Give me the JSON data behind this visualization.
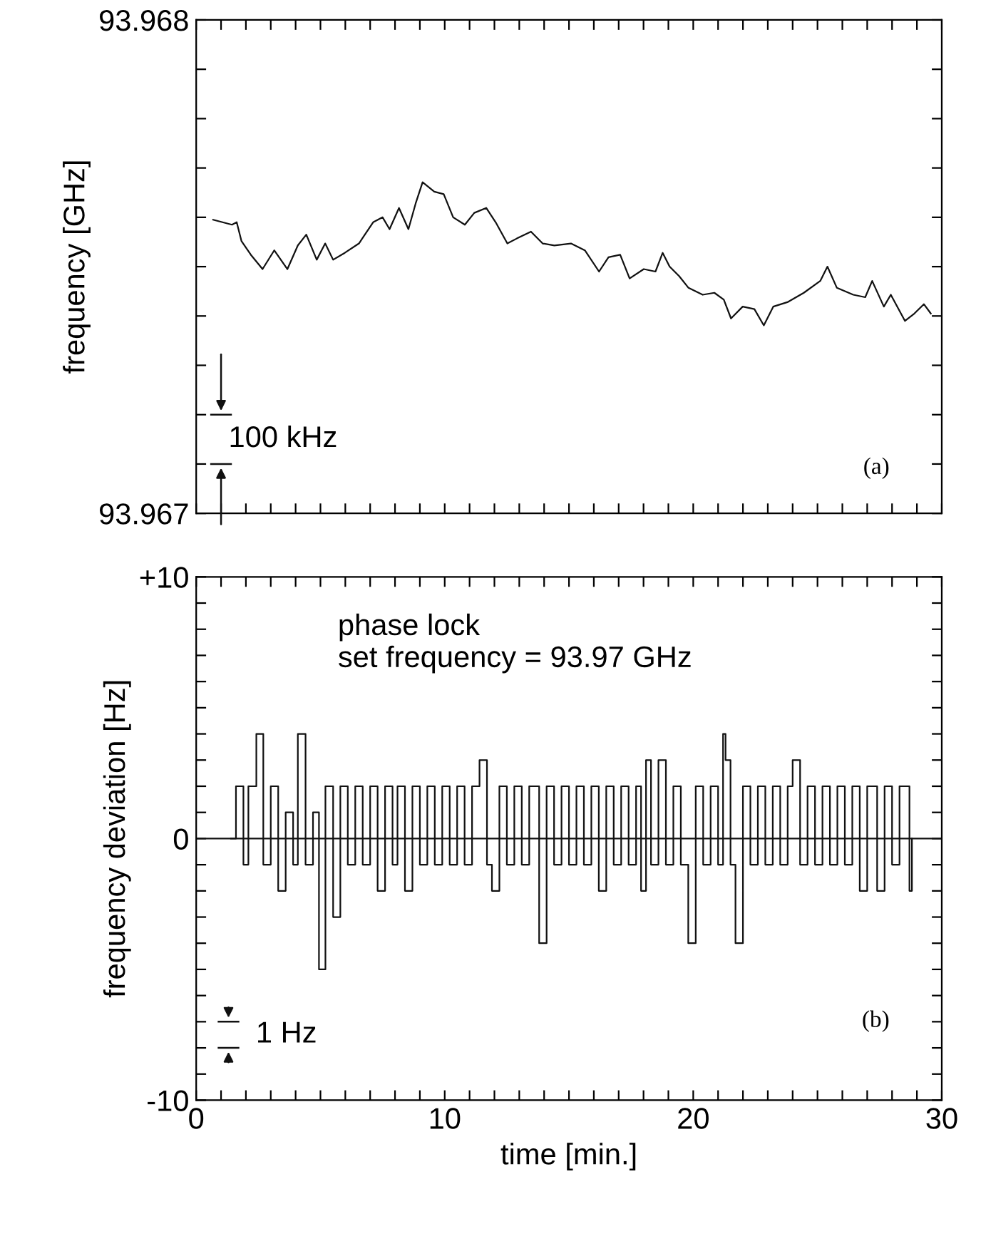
{
  "chart_data": [
    {
      "type": "line",
      "ylabel": "frequency [GHz]",
      "xlim": [
        0,
        30
      ],
      "ylim": [
        93.967,
        93.968
      ],
      "xticks": [
        0,
        {
          "value": 1,
          "label": null
        },
        {
          "value": 2,
          "label": null
        },
        {
          "value": 3,
          "label": null
        },
        {
          "value": 4,
          "label": null
        },
        {
          "value": 5,
          "label": null
        },
        {
          "value": 6,
          "label": null
        },
        {
          "value": 7,
          "label": null
        },
        {
          "value": 8,
          "label": null
        },
        {
          "value": 9,
          "label": null
        },
        10,
        {
          "value": 11,
          "label": null
        },
        {
          "value": 12,
          "label": null
        },
        {
          "value": 13,
          "label": null
        },
        {
          "value": 14,
          "label": null
        },
        {
          "value": 15,
          "label": null
        },
        {
          "value": 16,
          "label": null
        },
        {
          "value": 17,
          "label": null
        },
        {
          "value": 18,
          "label": null
        },
        {
          "value": 19,
          "label": null
        },
        20,
        {
          "value": 21,
          "label": null
        },
        {
          "value": 22,
          "label": null
        },
        {
          "value": 23,
          "label": null
        },
        {
          "value": 24,
          "label": null
        },
        {
          "value": 25,
          "label": null
        },
        {
          "value": 26,
          "label": null
        },
        {
          "value": 27,
          "label": null
        },
        {
          "value": 28,
          "label": null
        },
        {
          "value": 29,
          "label": null
        },
        30
      ],
      "yticks": [
        93.967,
        {
          "value": 93.9671,
          "label": null
        },
        {
          "value": 93.9672,
          "label": null
        },
        {
          "value": 93.9673,
          "label": null
        },
        {
          "value": 93.9674,
          "label": null
        },
        {
          "value": 93.9675,
          "label": null
        },
        {
          "value": 93.9676,
          "label": null
        },
        {
          "value": 93.9677,
          "label": null
        },
        {
          "value": 93.9678,
          "label": null
        },
        {
          "value": 93.9679,
          "label": null
        },
        93.968
      ],
      "tick_labels": "y",
      "grid": false,
      "legend": false,
      "annotations": [
        "100 kHz",
        "(a)"
      ],
      "series": [
        {
          "color": "#111111",
          "x": [
            0.68,
            1.44,
            1.63,
            1.82,
            2.2,
            2.67,
            3.14,
            3.67,
            4.09,
            4.43,
            4.85,
            5.19,
            5.51,
            5.98,
            6.55,
            7.12,
            7.5,
            7.78,
            8.16,
            8.54,
            8.83,
            9.11,
            9.58,
            9.96,
            10.34,
            10.81,
            11.19,
            11.67,
            12.05,
            12.52,
            12.9,
            13.47,
            13.94,
            14.41,
            15.08,
            15.64,
            16.21,
            16.59,
            17.06,
            17.44,
            18.01,
            18.48,
            18.77,
            19.05,
            19.43,
            19.81,
            20.38,
            20.85,
            21.23,
            21.52,
            21.99,
            22.46,
            22.84,
            23.22,
            23.79,
            24.45,
            25.11,
            25.4,
            25.78,
            26.44,
            26.92,
            27.2,
            27.67,
            27.95,
            28.52,
            28.9,
            29.28,
            29.56
          ],
          "values": [
            93.967595,
            93.967585,
            93.96759,
            93.967552,
            93.967524,
            93.967495,
            93.967533,
            93.967495,
            93.967543,
            93.967565,
            93.967514,
            93.967547,
            93.967514,
            93.967528,
            93.967547,
            93.96759,
            93.9676,
            93.967576,
            93.967619,
            93.967576,
            93.967628,
            93.967671,
            93.967652,
            93.967647,
            93.9676,
            93.967585,
            93.967609,
            93.967619,
            93.96759,
            93.967547,
            93.967557,
            93.967571,
            93.967547,
            93.967543,
            93.967547,
            93.967533,
            93.96749,
            93.967519,
            93.967524,
            93.967476,
            93.967495,
            93.96749,
            93.967528,
            93.9675,
            93.967481,
            93.967457,
            93.967443,
            93.967447,
            93.967433,
            93.967395,
            93.967419,
            93.967414,
            93.967381,
            93.967419,
            93.967428,
            93.967447,
            93.967471,
            93.9675,
            93.967457,
            93.967443,
            93.967438,
            93.967471,
            93.967419,
            93.967443,
            93.96739,
            93.967405,
            93.967424,
            93.967405
          ]
        }
      ]
    },
    {
      "type": "step",
      "xlabel": "time [min.]",
      "ylabel": "frequency deviation [Hz]",
      "xlim": [
        0,
        30
      ],
      "ylim": [
        -10,
        10
      ],
      "xticks": [
        0,
        {
          "value": 1,
          "label": null
        },
        {
          "value": 2,
          "label": null
        },
        {
          "value": 3,
          "label": null
        },
        {
          "value": 4,
          "label": null
        },
        {
          "value": 5,
          "label": null
        },
        {
          "value": 6,
          "label": null
        },
        {
          "value": 7,
          "label": null
        },
        {
          "value": 8,
          "label": null
        },
        {
          "value": 9,
          "label": null
        },
        10,
        {
          "value": 11,
          "label": null
        },
        {
          "value": 12,
          "label": null
        },
        {
          "value": 13,
          "label": null
        },
        {
          "value": 14,
          "label": null
        },
        {
          "value": 15,
          "label": null
        },
        {
          "value": 16,
          "label": null
        },
        {
          "value": 17,
          "label": null
        },
        {
          "value": 18,
          "label": null
        },
        {
          "value": 19,
          "label": null
        },
        20,
        {
          "value": 21,
          "label": null
        },
        {
          "value": 22,
          "label": null
        },
        {
          "value": 23,
          "label": null
        },
        {
          "value": 24,
          "label": null
        },
        {
          "value": 25,
          "label": null
        },
        {
          "value": 26,
          "label": null
        },
        {
          "value": 27,
          "label": null
        },
        {
          "value": 28,
          "label": null
        },
        {
          "value": 29,
          "label": null
        },
        30
      ],
      "yticks": [
        -10,
        {
          "value": -9,
          "label": null
        },
        {
          "value": -8,
          "label": null
        },
        {
          "value": -7,
          "label": null
        },
        {
          "value": -6,
          "label": null
        },
        {
          "value": -5,
          "label": null
        },
        {
          "value": -4,
          "label": null
        },
        {
          "value": -3,
          "label": null
        },
        {
          "value": -2,
          "label": null
        },
        {
          "value": -1,
          "label": null
        },
        0,
        {
          "value": 1,
          "label": null
        },
        {
          "value": 2,
          "label": null
        },
        {
          "value": 3,
          "label": null
        },
        {
          "value": 4,
          "label": null
        },
        {
          "value": 5,
          "label": null
        },
        {
          "value": 6,
          "label": null
        },
        {
          "value": 7,
          "label": null
        },
        {
          "value": 8,
          "label": null
        },
        {
          "value": 9,
          "label": null
        },
        {
          "value": 10,
          "label": "+10"
        }
      ],
      "grid": false,
      "legend": false,
      "ref_lines": [
        {
          "axis": "y",
          "value": 0,
          "color": "#111111"
        }
      ],
      "annotations": [
        "phase lock\nset frequency = 93.97 GHz",
        "1 Hz",
        "(b)"
      ],
      "series": [
        {
          "color": "#111111",
          "x": [
            1.4,
            1.6,
            1.9,
            2.1,
            2.42,
            2.7,
            3.0,
            3.3,
            3.6,
            3.9,
            4.09,
            4.4,
            4.7,
            4.94,
            5.2,
            5.51,
            5.8,
            6.1,
            6.4,
            6.7,
            7.0,
            7.3,
            7.6,
            7.9,
            8.1,
            8.4,
            8.7,
            9.0,
            9.3,
            9.6,
            9.9,
            10.2,
            10.5,
            10.8,
            11.1,
            11.4,
            11.7,
            11.9,
            12.2,
            12.5,
            12.8,
            13.1,
            13.4,
            13.8,
            14.1,
            14.4,
            14.7,
            15.0,
            15.3,
            15.6,
            15.9,
            16.2,
            16.5,
            16.8,
            17.1,
            17.4,
            17.7,
            17.9,
            18.1,
            18.3,
            18.6,
            18.9,
            19.2,
            19.5,
            19.8,
            20.1,
            20.4,
            20.7,
            21.0,
            21.2,
            21.3,
            21.5,
            21.7,
            22.0,
            22.3,
            22.6,
            22.9,
            23.2,
            23.5,
            23.8,
            24.0,
            24.3,
            24.6,
            24.9,
            25.2,
            25.5,
            25.8,
            26.1,
            26.4,
            26.7,
            27.0,
            27.4,
            27.7,
            28.0,
            28.3,
            28.7,
            28.8
          ],
          "values": [
            0,
            2,
            -1,
            2,
            4,
            -1,
            2,
            -2,
            1,
            -1,
            4,
            -1,
            1,
            -5,
            2,
            -3,
            2,
            -1,
            2,
            -1,
            2,
            -2,
            2,
            -1,
            2,
            -2,
            2,
            -1,
            2,
            -1,
            2,
            -1,
            2,
            -1,
            2,
            3,
            -1,
            -2,
            2,
            -1,
            2,
            -1,
            2,
            -4,
            2,
            -1,
            2,
            -1,
            2,
            -1,
            2,
            -2,
            2,
            -1,
            2,
            -1,
            2,
            -2,
            3,
            -1,
            3,
            -1,
            2,
            -1,
            -4,
            2,
            -1,
            2,
            -1,
            4,
            3,
            -1,
            -4,
            2,
            -1,
            2,
            -1,
            2,
            -1,
            2,
            3,
            -1,
            2,
            -1,
            2,
            -1,
            2,
            -1,
            2,
            -2,
            2,
            -2,
            2,
            -1,
            2,
            -2,
            0
          ]
        }
      ]
    }
  ]
}
